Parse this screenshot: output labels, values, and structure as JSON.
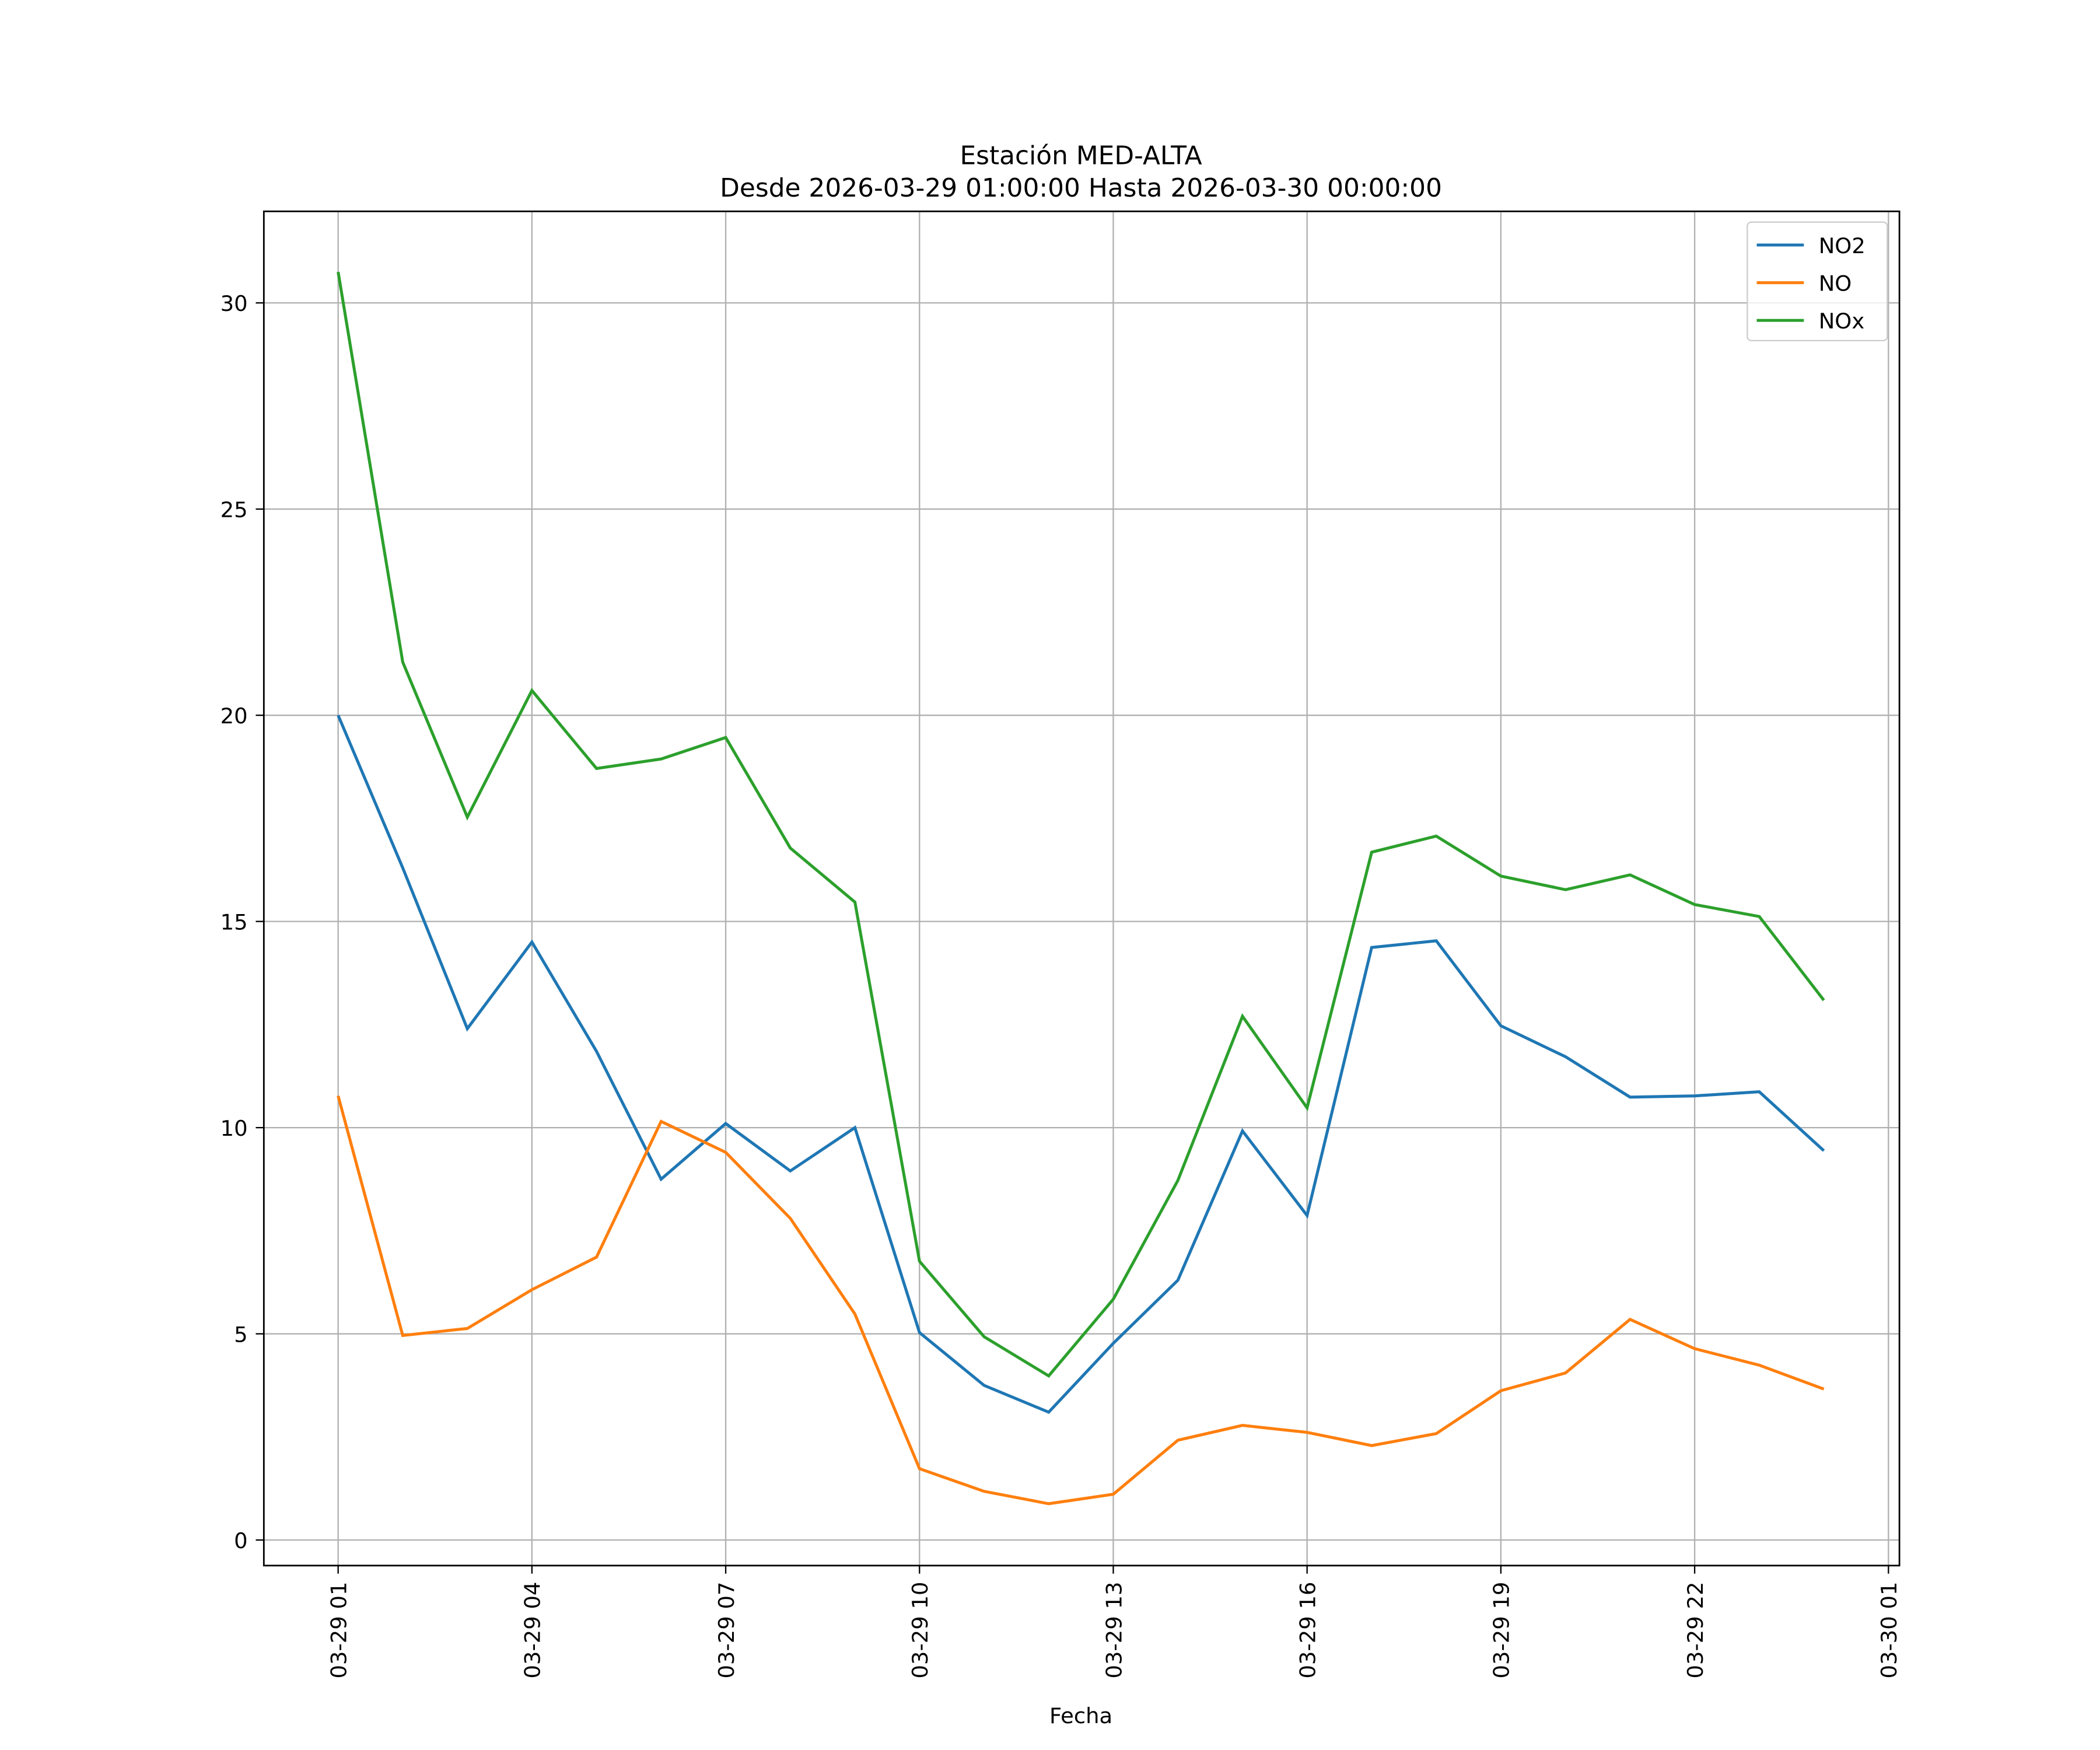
{
  "chart_data": {
    "type": "line",
    "title": "Estación MED-ALTA",
    "subtitle": "Desde 2026-03-29 01:00:00 Hasta 2026-03-30 00:00:00",
    "xlabel": "Fecha",
    "ylabel": "",
    "x_hours": [
      1,
      2,
      3,
      4,
      5,
      6,
      7,
      8,
      9,
      10,
      11,
      12,
      13,
      14,
      15,
      16,
      17,
      18,
      19,
      20,
      21,
      22,
      23,
      24
    ],
    "xlim": [
      -0.15,
      25.17
    ],
    "ylim": [
      -0.62,
      32.22
    ],
    "grid": true,
    "legend_position": "top-right",
    "x_ticks": [
      {
        "value": 1,
        "label": "03-29 01"
      },
      {
        "value": 4,
        "label": "03-29 04"
      },
      {
        "value": 7,
        "label": "03-29 07"
      },
      {
        "value": 10,
        "label": "03-29 10"
      },
      {
        "value": 13,
        "label": "03-29 13"
      },
      {
        "value": 16,
        "label": "03-29 16"
      },
      {
        "value": 19,
        "label": "03-29 19"
      },
      {
        "value": 22,
        "label": "03-29 22"
      },
      {
        "value": 25,
        "label": "03-30 01"
      }
    ],
    "y_ticks": [
      {
        "value": 0,
        "label": "0"
      },
      {
        "value": 5,
        "label": "5"
      },
      {
        "value": 10,
        "label": "10"
      },
      {
        "value": 15,
        "label": "15"
      },
      {
        "value": 20,
        "label": "20"
      },
      {
        "value": 25,
        "label": "25"
      },
      {
        "value": 30,
        "label": "30"
      }
    ],
    "series": [
      {
        "name": "NO2",
        "color": "#1f77b4",
        "values": [
          20.0,
          16.3,
          12.4,
          14.5,
          11.85,
          8.75,
          10.1,
          8.95,
          10.0,
          5.03,
          3.75,
          3.1,
          4.77,
          6.3,
          9.92,
          7.87,
          14.37,
          14.53,
          12.47,
          11.72,
          10.74,
          10.77,
          10.87,
          9.44
        ]
      },
      {
        "name": "NO",
        "color": "#ff7f0e",
        "values": [
          10.77,
          4.96,
          5.13,
          6.07,
          6.86,
          10.15,
          9.4,
          7.8,
          5.48,
          1.73,
          1.18,
          0.88,
          1.11,
          2.42,
          2.78,
          2.61,
          2.29,
          2.58,
          3.62,
          4.05,
          5.35,
          4.64,
          4.24,
          3.66
        ]
      },
      {
        "name": "NOx",
        "color": "#2ca02c",
        "values": [
          30.75,
          21.29,
          17.53,
          20.6,
          18.71,
          18.94,
          19.46,
          16.78,
          15.47,
          6.76,
          4.93,
          3.98,
          5.84,
          8.72,
          12.7,
          10.48,
          16.68,
          17.07,
          16.1,
          15.77,
          16.13,
          15.41,
          15.12,
          13.09
        ]
      }
    ]
  }
}
